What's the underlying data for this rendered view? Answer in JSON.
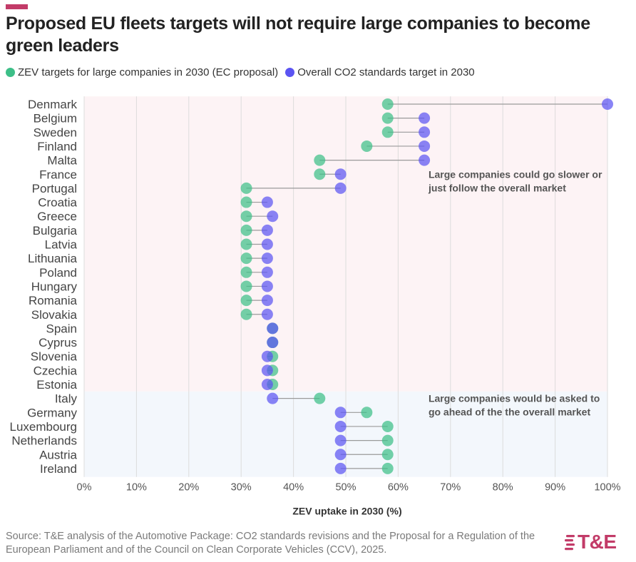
{
  "header": {
    "title": "Proposed EU fleets targets will not require large companies to become green leaders",
    "accent_color": "#c23b68"
  },
  "source": "Source: T&E analysis of the Automotive Package: CO2 standards revisions and the Proposal for a Regulation of the European Parliament and of the Council on Clean Corporate Vehicles (CCV), 2025.",
  "brand": {
    "text": "T&E",
    "icon": "te-stripes-icon",
    "color": "#c23b68"
  },
  "chart_data": {
    "type": "dumbbell",
    "xlabel": "ZEV uptake in 2030 (%)",
    "xlim": [
      0,
      100
    ],
    "xticks": [
      0,
      10,
      20,
      30,
      40,
      50,
      60,
      70,
      80,
      90,
      100
    ],
    "xtick_labels": [
      "0%",
      "10%",
      "20%",
      "30%",
      "40%",
      "50%",
      "60%",
      "70%",
      "80%",
      "90%",
      "100%"
    ],
    "grid": true,
    "legend_position": "top-left",
    "categories": [
      "Denmark",
      "Belgium",
      "Sweden",
      "Finland",
      "Malta",
      "France",
      "Portugal",
      "Croatia",
      "Greece",
      "Bulgaria",
      "Latvia",
      "Lithuania",
      "Poland",
      "Hungary",
      "Romania",
      "Slovakia",
      "Spain",
      "Cyprus",
      "Slovenia",
      "Czechia",
      "Estonia",
      "Italy",
      "Germany",
      "Luxembourg",
      "Netherlands",
      "Austria",
      "Ireland"
    ],
    "series": [
      {
        "name": "ZEV targets for large companies in 2030 (EC proposal)",
        "color": "#3dbf88",
        "values": [
          58,
          58,
          58,
          54,
          45,
          45,
          31,
          31,
          31,
          31,
          31,
          31,
          31,
          31,
          31,
          31,
          36,
          36,
          36,
          36,
          36,
          45,
          54,
          58,
          58,
          58,
          58
        ]
      },
      {
        "name": "Overall CO2 standards target in 2030",
        "color": "#5b54f2",
        "values": [
          100,
          65,
          65,
          65,
          65,
          49,
          49,
          35,
          36,
          35,
          35,
          35,
          35,
          35,
          35,
          35,
          36,
          36,
          35,
          35,
          35,
          36,
          49,
          49,
          49,
          49,
          49
        ]
      }
    ],
    "regions": [
      {
        "from": "Denmark",
        "to": "Estonia",
        "color": "#fdf3f5"
      },
      {
        "from": "Italy",
        "to": "Ireland",
        "color": "#f3f7fc"
      }
    ],
    "annotations": [
      {
        "text": [
          "Large companies could go slower or",
          "just follow the overall market"
        ],
        "anchor_x": 66,
        "anchor_row": "France"
      },
      {
        "text": [
          "Large companies would be asked to",
          "go ahead of the the overall market"
        ],
        "anchor_x": 66,
        "anchor_row": "Italy"
      }
    ]
  }
}
